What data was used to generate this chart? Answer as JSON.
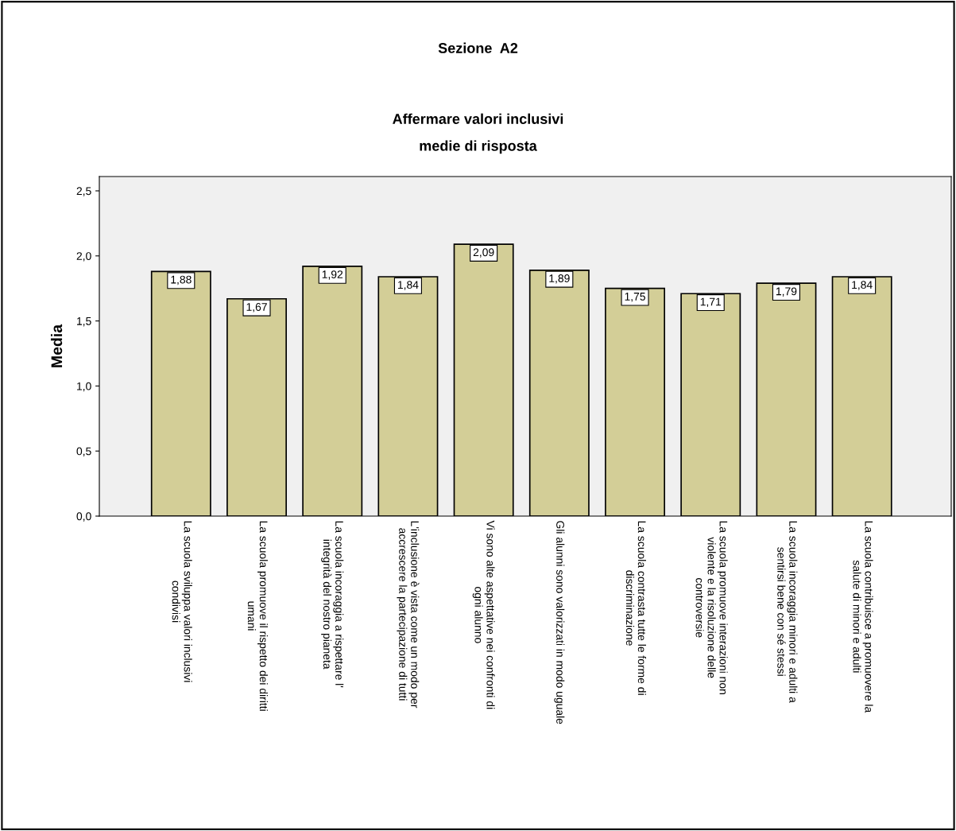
{
  "chart_data": {
    "type": "bar",
    "title": "Sezione  A2",
    "subtitle": "Affermare valori inclusivi\nmedie di risposta",
    "ylabel": "Media",
    "categories": [
      "La scuola sviluppa valori inclusivi\ncondivisi",
      "La scuola promuove il rispetto dei diritti\numani",
      "La scuola incoraggia a rispettare l'\nintegrità del nostro pianeta",
      "L'inclusione è vista come un modo per\naccrescere la partecipazione di tutti",
      "Vi sono alte aspettative nei confronti di\nogni alunno",
      "Gli alunni sono valorizzati in modo uguale",
      "La scuola contrasta tutte le forme di\ndiscriminazione",
      "La scuola promuove interazioni non\nviolente e la risoluzione delle\ncontroversie",
      "La scuola incoraggia minori e adulti a\nsentirsi bene con sé stessi",
      "La scuola contribuisce a promuovere la\nsalute di minori e adulti"
    ],
    "values": [
      1.88,
      1.67,
      1.92,
      1.84,
      2.09,
      1.89,
      1.75,
      1.71,
      1.79,
      1.84
    ],
    "value_labels": [
      "1,88",
      "1,67",
      "1,92",
      "1,84",
      "2,09",
      "1,89",
      "1,75",
      "1,71",
      "1,79",
      "1,84"
    ],
    "color": "#d3ce97",
    "ylim": [
      0,
      2.61
    ],
    "yticks": [
      {
        "value": 0,
        "label": "0,0"
      },
      {
        "value": 0.5,
        "label": "0,5"
      },
      {
        "value": 1,
        "label": "1,0"
      },
      {
        "value": 1.5,
        "label": "1,5"
      },
      {
        "value": 2,
        "label": "2,0"
      },
      {
        "value": 2.5,
        "label": "2,5"
      }
    ],
    "grid": false,
    "legend": false
  }
}
